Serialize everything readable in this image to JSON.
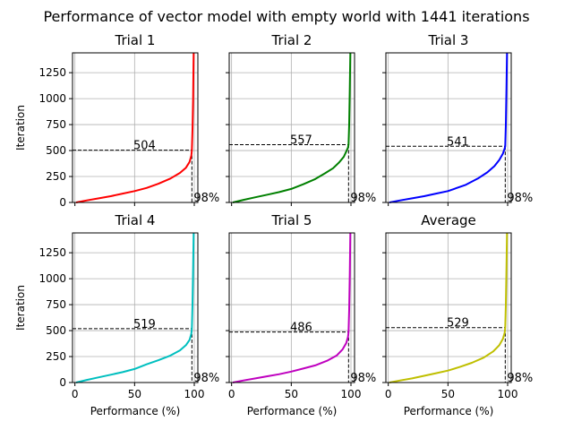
{
  "figure": {
    "title": "Performance of vector model with empty world with 1441 iterations"
  },
  "chart_data": [
    {
      "type": "line",
      "title": "Trial 1",
      "xlabel": "",
      "ylabel": "Iteration",
      "xlim": [
        -2,
        103
      ],
      "ylim": [
        0,
        1441
      ],
      "xticks": [
        0,
        50,
        100
      ],
      "yticks": [
        0,
        250,
        500,
        750,
        1000,
        1250
      ],
      "grid": true,
      "color": "#ff0000",
      "threshold_x": 98,
      "threshold_label": "98%",
      "threshold_y": 504,
      "threshold_y_label": "504",
      "series": [
        {
          "x": [
            1,
            10,
            20,
            30,
            40,
            50,
            60,
            70,
            80,
            88,
            93,
            96,
            97.5,
            98,
            98.5,
            99,
            99.3,
            99.5
          ],
          "y": [
            0,
            20,
            40,
            60,
            85,
            110,
            140,
            180,
            230,
            285,
            335,
            390,
            450,
            504,
            700,
            1000,
            1300,
            1441
          ]
        }
      ]
    },
    {
      "type": "line",
      "title": "Trial 2",
      "xlabel": "",
      "ylabel": "",
      "xlim": [
        -2,
        103
      ],
      "ylim": [
        0,
        1441
      ],
      "xticks": [
        0,
        50,
        100
      ],
      "yticks": [
        0,
        250,
        500,
        750,
        1000,
        1250
      ],
      "grid": true,
      "color": "#008000",
      "threshold_x": 98,
      "threshold_label": "98%",
      "threshold_y": 557,
      "threshold_y_label": "557",
      "series": [
        {
          "x": [
            1,
            10,
            20,
            30,
            40,
            50,
            60,
            70,
            78,
            85,
            90,
            94,
            96,
            97.5,
            98,
            98.5,
            99,
            99.5
          ],
          "y": [
            0,
            25,
            50,
            75,
            100,
            130,
            175,
            225,
            280,
            330,
            385,
            440,
            490,
            530,
            557,
            750,
            1100,
            1441
          ]
        }
      ]
    },
    {
      "type": "line",
      "title": "Trial 3",
      "xlabel": "",
      "ylabel": "",
      "xlim": [
        -2,
        103
      ],
      "ylim": [
        0,
        1441
      ],
      "xticks": [
        0,
        50,
        100
      ],
      "yticks": [
        0,
        250,
        500,
        750,
        1000,
        1250
      ],
      "grid": true,
      "color": "#0000ff",
      "threshold_x": 98,
      "threshold_label": "98%",
      "threshold_y": 541,
      "threshold_y_label": "541",
      "series": [
        {
          "x": [
            1,
            10,
            20,
            30,
            40,
            50,
            65,
            75,
            83,
            89,
            93,
            96,
            97.5,
            98,
            98.5,
            99,
            99.5
          ],
          "y": [
            0,
            20,
            40,
            60,
            85,
            110,
            170,
            230,
            290,
            350,
            410,
            470,
            520,
            541,
            750,
            1100,
            1441
          ]
        }
      ]
    },
    {
      "type": "line",
      "title": "Trial 4",
      "xlabel": "Performance (%)",
      "ylabel": "Iteration",
      "xlim": [
        -2,
        103
      ],
      "ylim": [
        0,
        1441
      ],
      "xticks": [
        0,
        50,
        100
      ],
      "yticks": [
        0,
        250,
        500,
        750,
        1000,
        1250
      ],
      "grid": true,
      "color": "#00bfbf",
      "threshold_x": 98,
      "threshold_label": "98%",
      "threshold_y": 519,
      "threshold_y_label": "519",
      "series": [
        {
          "x": [
            1,
            10,
            20,
            30,
            40,
            50,
            60,
            70,
            80,
            88,
            93,
            96,
            97.5,
            98,
            98.5,
            99,
            99.5
          ],
          "y": [
            0,
            25,
            50,
            75,
            100,
            130,
            175,
            215,
            260,
            310,
            360,
            410,
            470,
            519,
            750,
            1100,
            1441
          ]
        }
      ]
    },
    {
      "type": "line",
      "title": "Trial 5",
      "xlabel": "Performance (%)",
      "ylabel": "",
      "xlim": [
        -2,
        103
      ],
      "ylim": [
        0,
        1441
      ],
      "xticks": [
        0,
        50,
        100
      ],
      "yticks": [
        0,
        250,
        500,
        750,
        1000,
        1250
      ],
      "grid": true,
      "color": "#bf00bf",
      "threshold_x": 98,
      "threshold_label": "98%",
      "threshold_y": 486,
      "threshold_y_label": "486",
      "series": [
        {
          "x": [
            1,
            10,
            20,
            30,
            40,
            50,
            60,
            70,
            80,
            88,
            93,
            96,
            97.5,
            98,
            98.5,
            99,
            99.5
          ],
          "y": [
            0,
            20,
            40,
            60,
            80,
            105,
            135,
            165,
            210,
            260,
            320,
            380,
            440,
            486,
            700,
            1050,
            1441
          ]
        }
      ]
    },
    {
      "type": "line",
      "title": "Average",
      "xlabel": "Performance (%)",
      "ylabel": "",
      "xlim": [
        -2,
        103
      ],
      "ylim": [
        0,
        1441
      ],
      "xticks": [
        0,
        50,
        100
      ],
      "yticks": [
        0,
        250,
        500,
        750,
        1000,
        1250
      ],
      "grid": true,
      "color": "#bfbf00",
      "threshold_x": 98,
      "threshold_label": "98%",
      "threshold_y": 529,
      "threshold_y_label": "529",
      "series": [
        {
          "x": [
            1,
            10,
            20,
            30,
            40,
            50,
            60,
            70,
            80,
            88,
            93,
            96,
            97.5,
            98,
            98.5,
            99,
            99.5
          ],
          "y": [
            0,
            20,
            40,
            65,
            90,
            115,
            150,
            190,
            240,
            300,
            360,
            420,
            480,
            529,
            750,
            1100,
            1441
          ]
        }
      ]
    }
  ]
}
